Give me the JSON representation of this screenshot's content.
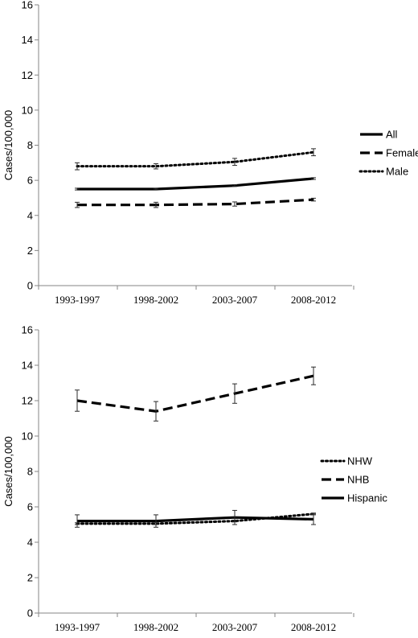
{
  "chart_data": [
    {
      "type": "line",
      "categories": [
        "1993-1997",
        "1998-2002",
        "2003-2007",
        "2008-2012"
      ],
      "ylabel": "Cases/100,000",
      "ylim": [
        0,
        16
      ],
      "yticks": [
        0,
        2,
        4,
        6,
        8,
        10,
        12,
        14,
        16
      ],
      "grid": false,
      "legend_position": "right",
      "series": [
        {
          "name": "All",
          "style": "solid",
          "color": "#000000",
          "values": [
            5.5,
            5.5,
            5.7,
            6.1
          ],
          "err": [
            0.05,
            0.05,
            0.05,
            0.05
          ]
        },
        {
          "name": "Female",
          "style": "dashed",
          "color": "#000000",
          "values": [
            4.6,
            4.6,
            4.65,
            4.9
          ],
          "err": [
            0.15,
            0.15,
            0.12,
            0.08
          ]
        },
        {
          "name": "Male",
          "style": "dotted",
          "color": "#000000",
          "values": [
            6.8,
            6.8,
            7.05,
            7.6
          ],
          "err": [
            0.2,
            0.15,
            0.2,
            0.2
          ]
        }
      ]
    },
    {
      "type": "line",
      "categories": [
        "1993-1997",
        "1998-2002",
        "2003-2007",
        "2008-2012"
      ],
      "ylabel": "Cases/100,000",
      "ylim": [
        0,
        16
      ],
      "yticks": [
        0,
        2,
        4,
        6,
        8,
        10,
        12,
        14,
        16
      ],
      "grid": false,
      "legend_position": "right",
      "series": [
        {
          "name": "NHW",
          "style": "dotted",
          "color": "#000000",
          "values": [
            5.05,
            5.05,
            5.2,
            5.6
          ],
          "err": [
            0.05,
            0.05,
            0.05,
            0.05
          ]
        },
        {
          "name": "NHB",
          "style": "dashed",
          "color": "#000000",
          "values": [
            12.0,
            11.4,
            12.4,
            13.4
          ],
          "err": [
            0.6,
            0.55,
            0.55,
            0.5
          ]
        },
        {
          "name": "Hispanic",
          "style": "solid",
          "color": "#000000",
          "values": [
            5.2,
            5.2,
            5.4,
            5.3
          ],
          "err": [
            0.35,
            0.35,
            0.4,
            0.3
          ]
        }
      ]
    }
  ]
}
